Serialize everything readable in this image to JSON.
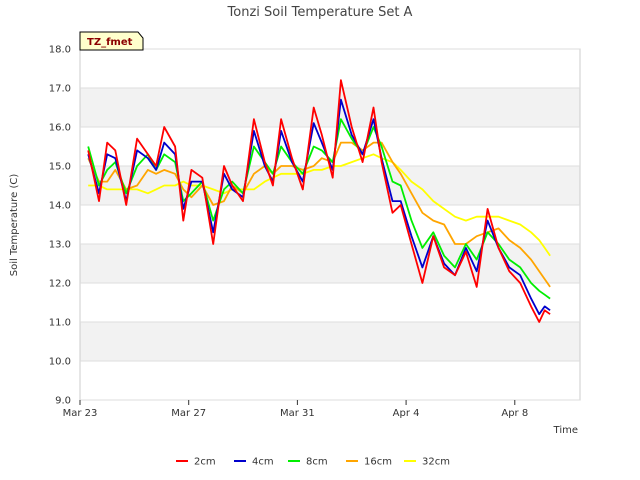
{
  "chart_data": {
    "type": "line",
    "title": "Tonzi Soil Temperature Set A",
    "xlabel": "Time",
    "ylabel": "Soil Temperature (C)",
    "badge": "TZ_fmet",
    "xlim": [
      0,
      18.4
    ],
    "ylim": [
      9.0,
      18.0
    ],
    "yticks": [
      9.0,
      10.0,
      11.0,
      12.0,
      13.0,
      14.0,
      15.0,
      16.0,
      17.0,
      18.0
    ],
    "ytick_labels": [
      "9.0",
      "10.0",
      "11.0",
      "12.0",
      "13.0",
      "14.0",
      "15.0",
      "16.0",
      "17.0",
      "18.0"
    ],
    "xticks": [
      0,
      4,
      8,
      12,
      16
    ],
    "xtick_labels": [
      "Mar 23",
      "Mar 27",
      "Mar 31",
      "Apr 4",
      "Apr 8"
    ],
    "grid": true,
    "legend_position": "bottom",
    "series": [
      {
        "name": "2cm",
        "color": "#ff0000",
        "x": [
          0.3,
          0.7,
          1.0,
          1.3,
          1.7,
          2.1,
          2.5,
          2.8,
          3.1,
          3.5,
          3.8,
          4.1,
          4.5,
          4.9,
          5.3,
          5.6,
          6.0,
          6.4,
          6.8,
          7.1,
          7.4,
          7.8,
          8.2,
          8.6,
          8.9,
          9.3,
          9.6,
          10.0,
          10.4,
          10.8,
          11.1,
          11.5,
          11.8,
          12.2,
          12.6,
          13.0,
          13.4,
          13.8,
          14.2,
          14.6,
          15.0,
          15.4,
          15.8,
          16.2,
          16.6,
          16.9,
          17.1,
          17.3
        ],
        "y": [
          15.4,
          14.1,
          15.6,
          15.4,
          14.0,
          15.7,
          15.3,
          15.0,
          16.0,
          15.5,
          13.6,
          14.9,
          14.7,
          13.0,
          15.0,
          14.5,
          14.1,
          16.2,
          15.1,
          14.5,
          16.2,
          15.2,
          14.4,
          16.5,
          15.8,
          14.7,
          17.2,
          16.0,
          15.1,
          16.5,
          15.1,
          13.8,
          14.0,
          13.0,
          12.0,
          13.2,
          12.4,
          12.2,
          12.8,
          11.9,
          13.9,
          12.9,
          12.3,
          12.0,
          11.4,
          11.0,
          11.3,
          11.2
        ]
      },
      {
        "name": "4cm",
        "color": "#0000cc",
        "x": [
          0.3,
          0.7,
          1.0,
          1.3,
          1.7,
          2.1,
          2.5,
          2.8,
          3.1,
          3.5,
          3.8,
          4.1,
          4.5,
          4.9,
          5.3,
          5.6,
          6.0,
          6.4,
          6.8,
          7.1,
          7.4,
          7.8,
          8.2,
          8.6,
          8.9,
          9.3,
          9.6,
          10.0,
          10.4,
          10.8,
          11.1,
          11.5,
          11.8,
          12.2,
          12.6,
          13.0,
          13.4,
          13.8,
          14.2,
          14.6,
          15.0,
          15.4,
          15.8,
          16.2,
          16.6,
          16.9,
          17.1,
          17.3
        ],
        "y": [
          15.3,
          14.3,
          15.3,
          15.2,
          14.1,
          15.4,
          15.2,
          14.9,
          15.6,
          15.3,
          13.9,
          14.6,
          14.6,
          13.3,
          14.8,
          14.4,
          14.2,
          15.9,
          15.0,
          14.6,
          15.9,
          15.1,
          14.6,
          16.1,
          15.6,
          14.9,
          16.7,
          15.8,
          15.3,
          16.2,
          15.2,
          14.1,
          14.1,
          13.2,
          12.4,
          13.2,
          12.5,
          12.2,
          12.9,
          12.3,
          13.6,
          12.9,
          12.4,
          12.2,
          11.6,
          11.2,
          11.4,
          11.3
        ]
      },
      {
        "name": "8cm",
        "color": "#00ee00",
        "x": [
          0.3,
          0.7,
          1.0,
          1.3,
          1.7,
          2.1,
          2.5,
          2.8,
          3.1,
          3.5,
          3.8,
          4.1,
          4.5,
          4.9,
          5.3,
          5.6,
          6.0,
          6.4,
          6.8,
          7.1,
          7.4,
          7.8,
          8.2,
          8.6,
          8.9,
          9.3,
          9.6,
          10.0,
          10.4,
          10.8,
          11.1,
          11.5,
          11.8,
          12.2,
          12.6,
          13.0,
          13.4,
          13.8,
          14.2,
          14.6,
          15.0,
          15.4,
          15.8,
          16.2,
          16.6,
          16.9,
          17.1,
          17.3
        ],
        "y": [
          15.5,
          14.5,
          14.9,
          15.1,
          14.3,
          15.0,
          15.3,
          14.9,
          15.3,
          15.1,
          14.1,
          14.3,
          14.6,
          13.6,
          14.4,
          14.6,
          14.3,
          15.5,
          15.1,
          14.8,
          15.5,
          15.1,
          14.8,
          15.5,
          15.4,
          15.1,
          16.2,
          15.7,
          15.3,
          16.0,
          15.5,
          14.6,
          14.5,
          13.6,
          12.9,
          13.3,
          12.7,
          12.4,
          13.0,
          12.6,
          13.3,
          13.0,
          12.6,
          12.4,
          12.0,
          11.8,
          11.7,
          11.6
        ]
      },
      {
        "name": "16cm",
        "color": "#ffa500",
        "x": [
          0.3,
          0.7,
          1.0,
          1.3,
          1.7,
          2.1,
          2.5,
          2.8,
          3.1,
          3.5,
          3.8,
          4.1,
          4.5,
          4.9,
          5.3,
          5.6,
          6.0,
          6.4,
          6.8,
          7.1,
          7.4,
          7.8,
          8.2,
          8.6,
          8.9,
          9.3,
          9.6,
          10.0,
          10.4,
          10.8,
          11.1,
          11.5,
          11.8,
          12.2,
          12.6,
          13.0,
          13.4,
          13.8,
          14.2,
          14.6,
          15.0,
          15.4,
          15.8,
          16.2,
          16.6,
          16.9,
          17.1,
          17.3
        ],
        "y": [
          15.2,
          14.6,
          14.6,
          14.9,
          14.4,
          14.5,
          14.9,
          14.8,
          14.9,
          14.8,
          14.4,
          14.2,
          14.5,
          14.0,
          14.1,
          14.5,
          14.3,
          14.8,
          15.0,
          14.8,
          15.0,
          15.0,
          14.9,
          15.0,
          15.2,
          15.1,
          15.6,
          15.6,
          15.4,
          15.6,
          15.6,
          15.1,
          14.8,
          14.3,
          13.8,
          13.6,
          13.5,
          13.0,
          13.0,
          13.2,
          13.3,
          13.4,
          13.1,
          12.9,
          12.6,
          12.3,
          12.1,
          11.9
        ]
      },
      {
        "name": "32cm",
        "color": "#ffff00",
        "x": [
          0.3,
          0.7,
          1.0,
          1.3,
          1.7,
          2.1,
          2.5,
          2.8,
          3.1,
          3.5,
          3.8,
          4.1,
          4.5,
          4.9,
          5.3,
          5.6,
          6.0,
          6.4,
          6.8,
          7.1,
          7.4,
          7.8,
          8.2,
          8.6,
          8.9,
          9.3,
          9.6,
          10.0,
          10.4,
          10.8,
          11.1,
          11.5,
          11.8,
          12.2,
          12.6,
          13.0,
          13.4,
          13.8,
          14.2,
          14.6,
          15.0,
          15.4,
          15.8,
          16.2,
          16.6,
          16.9,
          17.1,
          17.3
        ],
        "y": [
          14.5,
          14.5,
          14.4,
          14.4,
          14.4,
          14.4,
          14.3,
          14.4,
          14.5,
          14.5,
          14.6,
          14.5,
          14.5,
          14.4,
          14.3,
          14.4,
          14.4,
          14.4,
          14.6,
          14.7,
          14.8,
          14.8,
          14.8,
          14.9,
          14.9,
          15.0,
          15.0,
          15.1,
          15.2,
          15.3,
          15.2,
          15.1,
          14.9,
          14.6,
          14.4,
          14.1,
          13.9,
          13.7,
          13.6,
          13.7,
          13.7,
          13.7,
          13.6,
          13.5,
          13.3,
          13.1,
          12.9,
          12.7
        ]
      }
    ]
  }
}
